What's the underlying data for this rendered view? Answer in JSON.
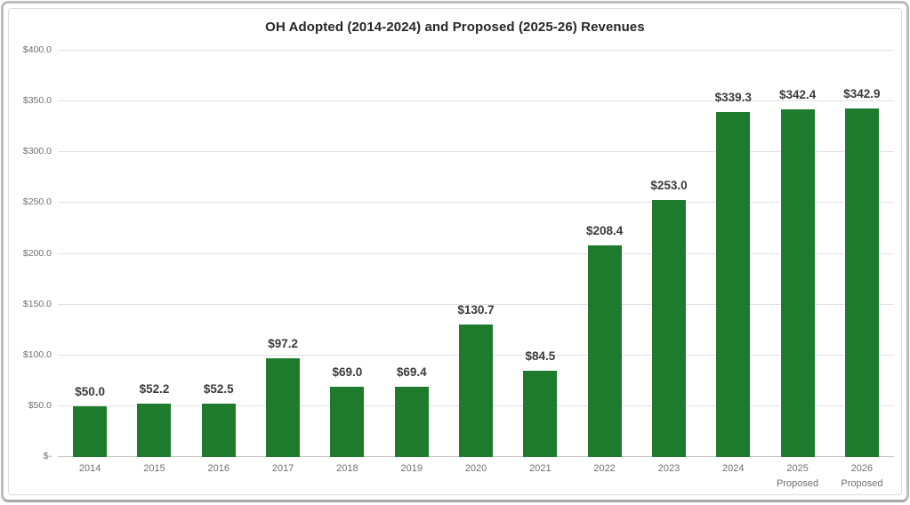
{
  "chart_data": {
    "type": "bar",
    "title": "OH Adopted (2014-2024) and Proposed (2025-26) Revenues",
    "categories": [
      "2014",
      "2015",
      "2016",
      "2017",
      "2018",
      "2019",
      "2020",
      "2021",
      "2022",
      "2023",
      "2024",
      "2025",
      "2026"
    ],
    "category_sublabels": [
      "",
      "",
      "",
      "",
      "",
      "",
      "",
      "",
      "",
      "",
      "",
      "Proposed",
      "Proposed"
    ],
    "values": [
      50.0,
      52.2,
      52.5,
      97.2,
      69.0,
      69.4,
      130.7,
      84.5,
      208.4,
      253.0,
      339.3,
      342.4,
      342.9
    ],
    "data_labels": [
      "$50.0",
      "$52.2",
      "$52.5",
      "$97.2",
      "$69.0",
      "$69.4",
      "$130.7",
      "$84.5",
      "$208.4",
      "$253.0",
      "$339.3",
      "$342.4",
      "$342.9"
    ],
    "y_ticks": [
      {
        "value": 0,
        "label": "$-"
      },
      {
        "value": 50,
        "label": "$50.0"
      },
      {
        "value": 100,
        "label": "$100.0"
      },
      {
        "value": 150,
        "label": "$150.0"
      },
      {
        "value": 200,
        "label": "$200.0"
      },
      {
        "value": 250,
        "label": "$250.0"
      },
      {
        "value": 300,
        "label": "$300.0"
      },
      {
        "value": 350,
        "label": "$350.0"
      },
      {
        "value": 400,
        "label": "$400.0"
      }
    ],
    "ylim": [
      0,
      400
    ],
    "xlabel": "",
    "ylabel": "",
    "grid": true,
    "legend": false,
    "bar_color": "#1E7B2E",
    "value_label_color": "#3B3B3B",
    "tick_label_color": "#6F6F6F",
    "gridline_color": "#E2E2E2",
    "frame_border_color": "#BDBDBD"
  }
}
